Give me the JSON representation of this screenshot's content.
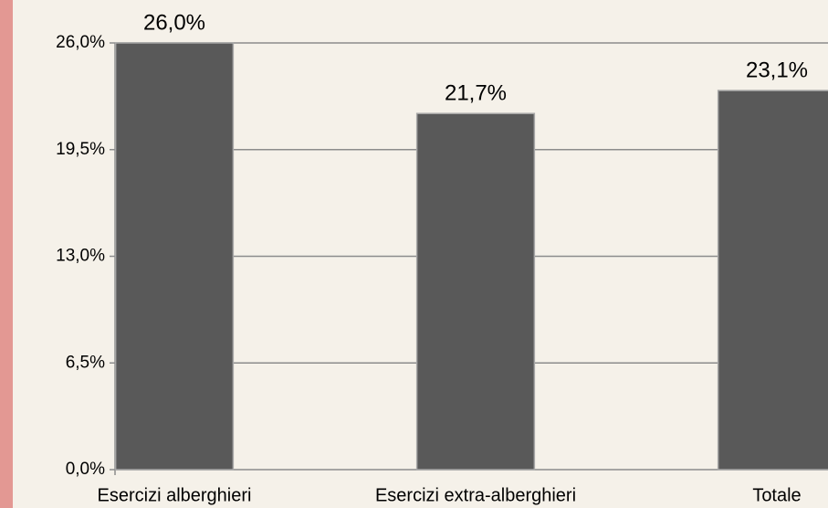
{
  "chart_data": {
    "type": "bar",
    "categories": [
      "Esercizi alberghieri",
      "Esercizi extra-alberghieri",
      "Totale"
    ],
    "values": [
      26.0,
      21.7,
      23.1
    ],
    "value_labels": [
      "26,0%",
      "21,7%",
      "23,1%"
    ],
    "color": "#595959",
    "ylim": [
      0,
      26
    ],
    "yticks": [
      {
        "value": 0,
        "label": "0,0%"
      },
      {
        "value": 6.5,
        "label": "6,5%"
      },
      {
        "value": 13,
        "label": "13,0%"
      },
      {
        "value": 19.5,
        "label": "19,5%"
      },
      {
        "value": 26,
        "label": "26,0%"
      }
    ],
    "grid": true
  }
}
